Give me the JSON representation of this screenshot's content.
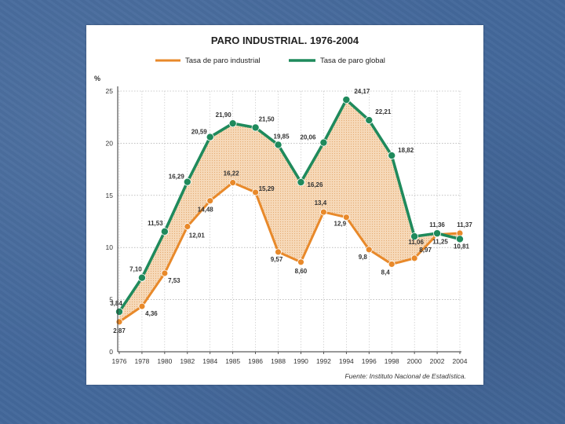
{
  "chart_data": {
    "type": "line",
    "title": "PARO INDUSTRIAL. 1976-2004",
    "ylabel": "%",
    "ylim": [
      0,
      25
    ],
    "yticks": [
      0,
      5,
      10,
      15,
      20,
      25
    ],
    "grid": true,
    "legend_position": "top",
    "source": "Fuente: Instituto Nacional de Estadística.",
    "x": [
      1976,
      1978,
      1980,
      1982,
      1984,
      1985,
      1986,
      1988,
      1990,
      1992,
      1994,
      1996,
      1998,
      2000,
      2002,
      2004
    ],
    "x_tick_labels": [
      "1976",
      "1978",
      "1980",
      "1982",
      "1984",
      "1985",
      "1986",
      "1988",
      "1990",
      "1992",
      "1994",
      "1996",
      "1998",
      "2000",
      "2002",
      "2004"
    ],
    "series": [
      {
        "name": "Tasa de paro industrial",
        "color": "#e8892a",
        "values": [
          2.87,
          4.36,
          7.53,
          12.01,
          14.48,
          16.22,
          15.29,
          9.57,
          8.6,
          13.4,
          12.9,
          9.8,
          8.4,
          8.97,
          11.25,
          11.37
        ],
        "labels": [
          "2,87",
          "4,36",
          "7,53",
          "12,01",
          "14,48",
          "16,22",
          "15,29",
          "9,57",
          "8,60",
          "13,4",
          "12,9",
          "9,8",
          "8,4",
          "8,97",
          "11,25",
          "11,37"
        ]
      },
      {
        "name": "Tasa de paro global",
        "color": "#1f8a5c",
        "values": [
          3.84,
          7.1,
          11.53,
          16.29,
          20.59,
          21.9,
          21.5,
          19.85,
          16.26,
          20.06,
          24.17,
          22.21,
          18.82,
          11.06,
          11.36,
          10.81
        ],
        "labels": [
          "3,84",
          "7,10",
          "11,53",
          "16,29",
          "20,59",
          "21,90",
          "21,50",
          "19,85",
          "16,26",
          "20,06",
          "24,17",
          "22,21",
          "18,82",
          "11,06",
          "11,36",
          "10,81"
        ]
      }
    ],
    "fill_between_color": "#f6d7b5"
  }
}
